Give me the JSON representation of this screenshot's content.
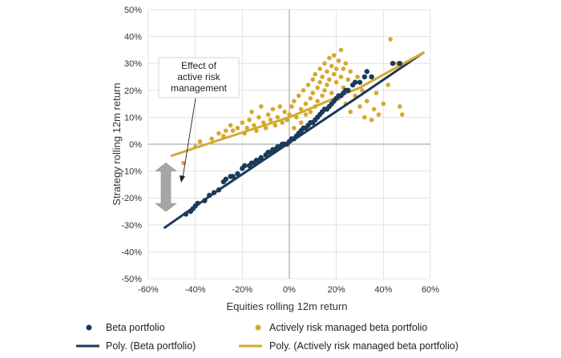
{
  "chart_data": {
    "type": "scatter",
    "xlabel": "Equities rolling 12m return",
    "ylabel": "Strategy rolling 12m return",
    "xlim": [
      -0.6,
      0.6
    ],
    "ylim": [
      -0.5,
      0.5
    ],
    "x_ticks": [
      "-60%",
      "-40%",
      "-20%",
      "0%",
      "20%",
      "40%",
      "60%"
    ],
    "y_ticks": [
      "50%",
      "40%",
      "30%",
      "20%",
      "10%",
      "0%",
      "-10%",
      "-20%",
      "-30%",
      "-40%",
      "-50%"
    ],
    "grid": true,
    "legend_position": "bottom",
    "annotation": {
      "lines": [
        "Effect of",
        "active risk",
        "management"
      ],
      "arrow_x": -0.45,
      "arrow_top": -0.07,
      "arrow_bottom": -0.25
    },
    "legend": {
      "beta_points": "Beta portfolio",
      "active_points": "Actively risk managed beta portfolio",
      "beta_fit": "Poly. (Beta portfolio)",
      "active_fit": "Poly. (Actively risk managed beta portfolio)"
    },
    "series": [
      {
        "name": "Beta portfolio",
        "kind": "points",
        "color": "#1b3a5c",
        "points": [
          [
            -0.44,
            -0.26
          ],
          [
            -0.42,
            -0.25
          ],
          [
            -0.41,
            -0.24
          ],
          [
            -0.4,
            -0.23
          ],
          [
            -0.39,
            -0.22
          ],
          [
            -0.36,
            -0.21
          ],
          [
            -0.34,
            -0.19
          ],
          [
            -0.32,
            -0.18
          ],
          [
            -0.3,
            -0.17
          ],
          [
            -0.28,
            -0.14
          ],
          [
            -0.27,
            -0.13
          ],
          [
            -0.25,
            -0.12
          ],
          [
            -0.24,
            -0.12
          ],
          [
            -0.22,
            -0.11
          ],
          [
            -0.2,
            -0.09
          ],
          [
            -0.19,
            -0.08
          ],
          [
            -0.17,
            -0.08
          ],
          [
            -0.16,
            -0.07
          ],
          [
            -0.15,
            -0.07
          ],
          [
            -0.14,
            -0.06
          ],
          [
            -0.13,
            -0.06
          ],
          [
            -0.12,
            -0.05
          ],
          [
            -0.1,
            -0.04
          ],
          [
            -0.09,
            -0.03
          ],
          [
            -0.08,
            -0.03
          ],
          [
            -0.07,
            -0.02
          ],
          [
            -0.06,
            -0.02
          ],
          [
            -0.05,
            -0.01
          ],
          [
            -0.04,
            -0.01
          ],
          [
            -0.03,
            0.0
          ],
          [
            -0.02,
            0.0
          ],
          [
            -0.01,
            0.0
          ],
          [
            0.0,
            0.01
          ],
          [
            0.01,
            0.02
          ],
          [
            0.02,
            0.02
          ],
          [
            0.03,
            0.03
          ],
          [
            0.04,
            0.04
          ],
          [
            0.05,
            0.05
          ],
          [
            0.06,
            0.06
          ],
          [
            0.07,
            0.06
          ],
          [
            0.08,
            0.07
          ],
          [
            0.09,
            0.08
          ],
          [
            0.1,
            0.08
          ],
          [
            0.11,
            0.09
          ],
          [
            0.12,
            0.1
          ],
          [
            0.13,
            0.11
          ],
          [
            0.14,
            0.12
          ],
          [
            0.15,
            0.13
          ],
          [
            0.16,
            0.13
          ],
          [
            0.17,
            0.14
          ],
          [
            0.18,
            0.15
          ],
          [
            0.19,
            0.16
          ],
          [
            0.2,
            0.17
          ],
          [
            0.21,
            0.18
          ],
          [
            0.22,
            0.18
          ],
          [
            0.23,
            0.19
          ],
          [
            0.24,
            0.2
          ],
          [
            0.25,
            0.2
          ],
          [
            0.27,
            0.22
          ],
          [
            0.28,
            0.23
          ],
          [
            0.3,
            0.23
          ],
          [
            0.32,
            0.25
          ],
          [
            0.33,
            0.27
          ],
          [
            0.35,
            0.25
          ],
          [
            0.44,
            0.3
          ],
          [
            0.47,
            0.3
          ]
        ]
      },
      {
        "name": "Actively risk managed beta portfolio",
        "kind": "points",
        "color": "#d4a92e",
        "points": [
          [
            -0.45,
            -0.07
          ],
          [
            -0.4,
            -0.01
          ],
          [
            -0.38,
            0.01
          ],
          [
            -0.33,
            0.02
          ],
          [
            -0.3,
            0.04
          ],
          [
            -0.28,
            0.03
          ],
          [
            -0.27,
            0.05
          ],
          [
            -0.25,
            0.07
          ],
          [
            -0.24,
            0.05
          ],
          [
            -0.22,
            0.06
          ],
          [
            -0.2,
            0.08
          ],
          [
            -0.19,
            0.04
          ],
          [
            -0.18,
            0.06
          ],
          [
            -0.17,
            0.09
          ],
          [
            -0.16,
            0.12
          ],
          [
            -0.15,
            0.07
          ],
          [
            -0.14,
            0.05
          ],
          [
            -0.13,
            0.1
          ],
          [
            -0.12,
            0.14
          ],
          [
            -0.11,
            0.08
          ],
          [
            -0.1,
            0.06
          ],
          [
            -0.09,
            0.11
          ],
          [
            -0.08,
            0.09
          ],
          [
            -0.07,
            0.13
          ],
          [
            -0.06,
            0.07
          ],
          [
            -0.05,
            0.1
          ],
          [
            -0.04,
            0.14
          ],
          [
            -0.03,
            0.08
          ],
          [
            -0.02,
            0.12
          ],
          [
            -0.01,
            0.09
          ],
          [
            0.0,
            0.11
          ],
          [
            0.01,
            0.14
          ],
          [
            0.02,
            0.06
          ],
          [
            0.02,
            0.16
          ],
          [
            0.03,
            0.1
          ],
          [
            0.04,
            0.18
          ],
          [
            0.05,
            0.13
          ],
          [
            0.05,
            0.08
          ],
          [
            0.06,
            0.2
          ],
          [
            0.07,
            0.15
          ],
          [
            0.07,
            0.11
          ],
          [
            0.08,
            0.22
          ],
          [
            0.09,
            0.17
          ],
          [
            0.09,
            0.12
          ],
          [
            0.1,
            0.24
          ],
          [
            0.1,
            0.19
          ],
          [
            0.11,
            0.14
          ],
          [
            0.11,
            0.26
          ],
          [
            0.12,
            0.21
          ],
          [
            0.12,
            0.16
          ],
          [
            0.13,
            0.28
          ],
          [
            0.13,
            0.23
          ],
          [
            0.14,
            0.18
          ],
          [
            0.14,
            0.25
          ],
          [
            0.15,
            0.3
          ],
          [
            0.15,
            0.2
          ],
          [
            0.16,
            0.27
          ],
          [
            0.16,
            0.22
          ],
          [
            0.17,
            0.32
          ],
          [
            0.17,
            0.24
          ],
          [
            0.18,
            0.29
          ],
          [
            0.18,
            0.19
          ],
          [
            0.19,
            0.26
          ],
          [
            0.19,
            0.33
          ],
          [
            0.2,
            0.23
          ],
          [
            0.2,
            0.28
          ],
          [
            0.21,
            0.31
          ],
          [
            0.21,
            0.17
          ],
          [
            0.22,
            0.25
          ],
          [
            0.22,
            0.35
          ],
          [
            0.23,
            0.21
          ],
          [
            0.23,
            0.28
          ],
          [
            0.24,
            0.3
          ],
          [
            0.24,
            0.15
          ],
          [
            0.25,
            0.24
          ],
          [
            0.26,
            0.27
          ],
          [
            0.26,
            0.12
          ],
          [
            0.27,
            0.22
          ],
          [
            0.28,
            0.18
          ],
          [
            0.29,
            0.25
          ],
          [
            0.3,
            0.14
          ],
          [
            0.31,
            0.2
          ],
          [
            0.32,
            0.1
          ],
          [
            0.33,
            0.16
          ],
          [
            0.35,
            0.09
          ],
          [
            0.36,
            0.13
          ],
          [
            0.37,
            0.19
          ],
          [
            0.38,
            0.11
          ],
          [
            0.4,
            0.15
          ],
          [
            0.42,
            0.22
          ],
          [
            0.43,
            0.39
          ],
          [
            0.46,
            0.3
          ],
          [
            0.47,
            0.14
          ],
          [
            0.48,
            0.11
          ]
        ]
      },
      {
        "name": "Poly. (Beta portfolio)",
        "kind": "line",
        "color": "#1b3a5c",
        "points": [
          [
            -0.53,
            -0.31
          ],
          [
            -0.3,
            -0.17
          ],
          [
            0.0,
            0.005
          ],
          [
            0.3,
            0.18
          ],
          [
            0.57,
            0.34
          ]
        ]
      },
      {
        "name": "Poly. (Actively risk managed beta portfolio)",
        "kind": "line",
        "color": "#d4a92e",
        "points": [
          [
            -0.5,
            -0.043
          ],
          [
            -0.3,
            0.015
          ],
          [
            0.0,
            0.1
          ],
          [
            0.3,
            0.21
          ],
          [
            0.57,
            0.34
          ]
        ]
      }
    ]
  }
}
